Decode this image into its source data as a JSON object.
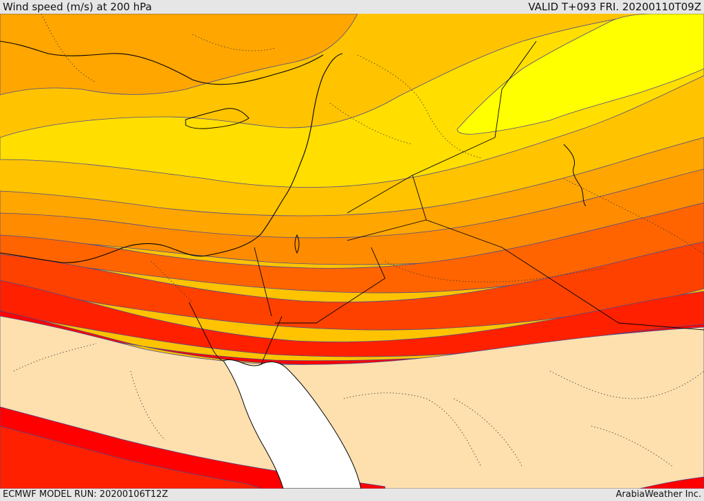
{
  "header": {
    "title": "Wind speed (m/s) at 200 hPa",
    "valid": "VALID T+093 FRI. 20200110T09Z"
  },
  "footer": {
    "model_run": "ECMWF MODEL RUN: 20200106T12Z",
    "credit": "ArabiaWeather Inc."
  },
  "colors": {
    "yellow_bright": "#ffff00",
    "yellow": "#ffde00",
    "gold": "#ffc300",
    "orange_light": "#ffa600",
    "orange": "#ff8c00",
    "orange_dark": "#ff6400",
    "red_orange": "#ff4100",
    "red": "#ff2000",
    "red_deep": "#ff0000",
    "calm": "#fde0ae",
    "sea": "#ffffff",
    "contour": "#4a4a8c",
    "coast": "#000000"
  }
}
